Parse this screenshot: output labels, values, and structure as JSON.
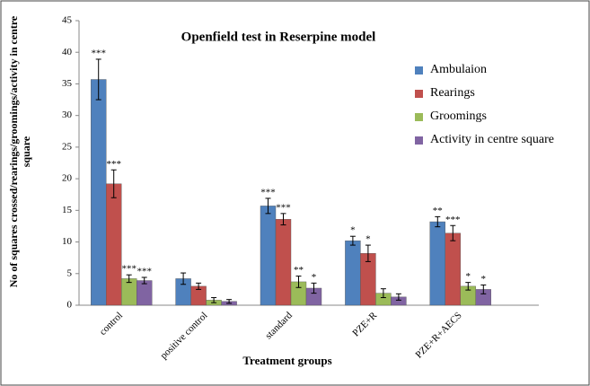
{
  "chart_data": {
    "type": "bar",
    "title": "Openfield test in Reserpine model",
    "x_label": "Treatment groups",
    "y_label": "No of squares crossed/rearings/groomings/activity in centre square",
    "categories": [
      "control",
      "positive control",
      "standard",
      "PZE+R",
      "PZE+R+AECS"
    ],
    "series": [
      {
        "name": "Ambulaion",
        "color": "#4f81bd",
        "values": [
          35.7,
          4.2,
          15.7,
          10.2,
          13.2
        ],
        "errors": [
          3.2,
          0.9,
          1.2,
          0.7,
          0.8
        ],
        "significance": [
          "***",
          null,
          "***",
          "*",
          "**"
        ]
      },
      {
        "name": "Rearings",
        "color": "#c0504d",
        "values": [
          19.2,
          3.0,
          13.6,
          8.2,
          11.4
        ],
        "errors": [
          2.2,
          0.5,
          0.9,
          1.3,
          1.2
        ],
        "significance": [
          "***",
          null,
          "***",
          "*",
          "***"
        ]
      },
      {
        "name": "Groomings",
        "color": "#9bbb59",
        "values": [
          4.2,
          0.8,
          3.7,
          1.9,
          3.0
        ],
        "errors": [
          0.6,
          0.4,
          0.9,
          0.7,
          0.6
        ],
        "significance": [
          "***",
          null,
          "**",
          null,
          "*"
        ]
      },
      {
        "name": "Activity in centre square",
        "color": "#8064a2",
        "values": [
          3.9,
          0.6,
          2.7,
          1.3,
          2.5
        ],
        "errors": [
          0.5,
          0.3,
          0.8,
          0.5,
          0.7
        ],
        "significance": [
          "***",
          null,
          "*",
          null,
          "*"
        ]
      }
    ],
    "ylim": [
      0,
      45
    ],
    "yticks": [
      0,
      5,
      10,
      15,
      20,
      25,
      30,
      35,
      40,
      45
    ]
  }
}
